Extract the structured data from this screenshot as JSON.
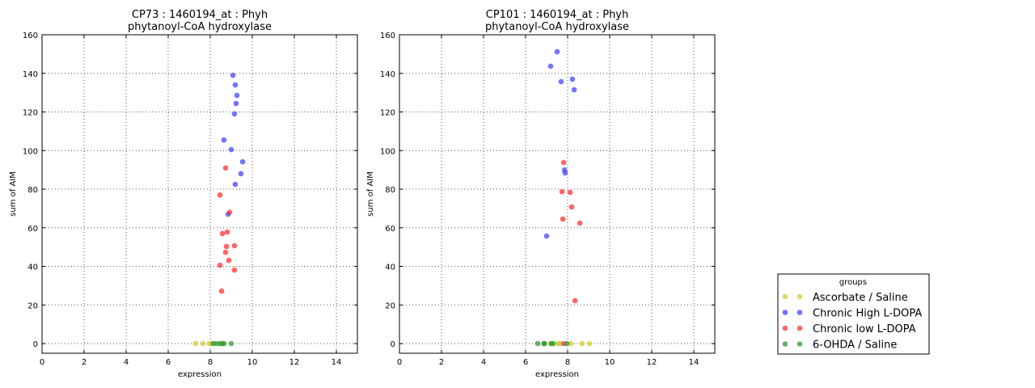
{
  "chart_data": [
    {
      "type": "scatter",
      "title": "CP73 : 1460194_at : Phyh",
      "subtitle": "phytanoyl-CoA hydroxylase",
      "xlabel": "expression",
      "ylabel": "sum of AIM",
      "xlim": [
        0,
        15
      ],
      "ylim": [
        -5,
        160
      ],
      "xticks": [
        "0",
        "2",
        "4",
        "6",
        "8",
        "10",
        "12",
        "14"
      ],
      "yticks": [
        "0",
        "20",
        "40",
        "60",
        "80",
        "100",
        "120",
        "140",
        "160"
      ],
      "grid": true,
      "series": [
        {
          "name": "Ascorbate / Saline",
          "points": [
            [
              7.3,
              0
            ],
            [
              7.65,
              0
            ],
            [
              7.96,
              0
            ],
            [
              8.08,
              0
            ]
          ]
        },
        {
          "name": "Chronic High L-DOPA",
          "points": [
            [
              9.08,
              139
            ],
            [
              9.19,
              134
            ],
            [
              9.27,
              128.6
            ],
            [
              9.23,
              124.4
            ],
            [
              9.15,
              119
            ],
            [
              8.65,
              105.5
            ],
            [
              9.0,
              100.5
            ],
            [
              9.54,
              94.2
            ],
            [
              9.46,
              88
            ],
            [
              9.19,
              82.5
            ],
            [
              8.85,
              67
            ]
          ]
        },
        {
          "name": "Chronic low L-DOPA",
          "points": [
            [
              8.73,
              91
            ],
            [
              8.46,
              77
            ],
            [
              8.92,
              68
            ],
            [
              8.58,
              57
            ],
            [
              8.81,
              57.8
            ],
            [
              8.77,
              50.3
            ],
            [
              9.15,
              50.7
            ],
            [
              8.73,
              47.3
            ],
            [
              8.88,
              43.1
            ],
            [
              8.46,
              40.6
            ],
            [
              9.15,
              38.1
            ],
            [
              8.54,
              27.2
            ]
          ]
        },
        {
          "name": "6-OHDA / Saline",
          "points": [
            [
              8.15,
              0
            ],
            [
              8.3,
              0
            ],
            [
              8.46,
              0
            ],
            [
              8.58,
              0
            ],
            [
              8.65,
              0
            ],
            [
              9.0,
              0
            ]
          ]
        }
      ]
    },
    {
      "type": "scatter",
      "title": "CP101 : 1460194_at : Phyh",
      "subtitle": "phytanoyl-CoA hydroxylase",
      "xlabel": "expression",
      "ylabel": "sum of AIM",
      "xlim": [
        0,
        15
      ],
      "ylim": [
        -5,
        160
      ],
      "xticks": [
        "0",
        "2",
        "4",
        "6",
        "8",
        "10",
        "12",
        "14"
      ],
      "yticks": [
        "0",
        "20",
        "40",
        "60",
        "80",
        "100",
        "120",
        "140",
        "160"
      ],
      "grid": true,
      "series": [
        {
          "name": "Ascorbate / Saline",
          "points": [
            [
              7.18,
              0
            ],
            [
              7.54,
              0
            ],
            [
              7.62,
              0
            ],
            [
              8.15,
              0
            ],
            [
              8.69,
              0
            ],
            [
              9.04,
              0
            ]
          ]
        },
        {
          "name": "Chronic High L-DOPA",
          "points": [
            [
              7.5,
              151.2
            ],
            [
              7.19,
              143.7
            ],
            [
              7.69,
              135.7
            ],
            [
              8.23,
              137
            ],
            [
              8.31,
              131.5
            ],
            [
              7.85,
              90
            ],
            [
              7.88,
              88.4
            ],
            [
              7.0,
              55.7
            ]
          ]
        },
        {
          "name": "Chronic low L-DOPA",
          "points": [
            [
              7.81,
              93.8
            ],
            [
              7.73,
              78.7
            ],
            [
              8.12,
              78.3
            ],
            [
              8.19,
              70.8
            ],
            [
              7.77,
              64.5
            ],
            [
              8.58,
              62.4
            ],
            [
              8.35,
              22.2
            ],
            [
              7.81,
              0
            ]
          ]
        },
        {
          "name": "6-OHDA / Saline",
          "points": [
            [
              6.58,
              0
            ],
            [
              6.87,
              0
            ],
            [
              6.9,
              0
            ],
            [
              7.23,
              0
            ],
            [
              7.31,
              0
            ],
            [
              7.96,
              0
            ]
          ]
        }
      ]
    }
  ],
  "legend": {
    "title": "groups",
    "placement": "bottom-right, outside plots",
    "entries": [
      {
        "label": "Ascorbate / Saline",
        "color": "#cccc33"
      },
      {
        "label": "Chronic High L-DOPA",
        "color": "#4444ff"
      },
      {
        "label": "Chronic low L-DOPA",
        "color": "#ff3333"
      },
      {
        "label": "6-OHDA / Saline",
        "color": "#339933"
      }
    ]
  }
}
